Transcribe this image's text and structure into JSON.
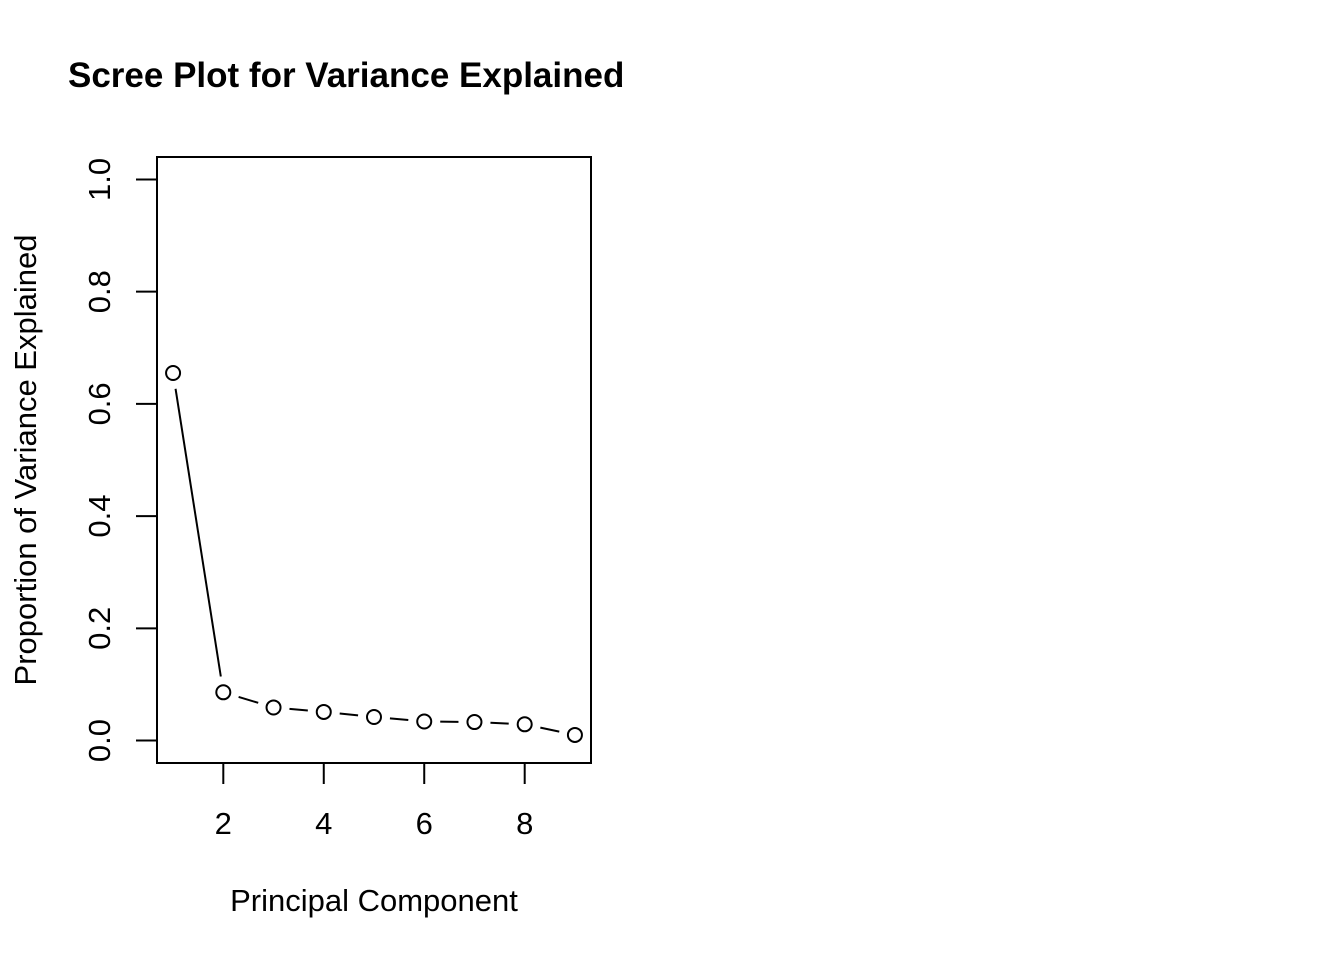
{
  "chart_data": {
    "type": "line",
    "title": "Scree Plot for Variance Explained",
    "xlabel": "Principal Component",
    "ylabel": "Proportion of Variance Explained",
    "xlim": [
      0.68,
      9.32
    ],
    "ylim": [
      -0.04,
      1.04
    ],
    "x_ticks": [
      2,
      4,
      6,
      8
    ],
    "x_tick_labels": [
      "2",
      "4",
      "6",
      "8"
    ],
    "y_ticks": [
      0.0,
      0.2,
      0.4,
      0.6,
      0.8,
      1.0
    ],
    "y_tick_labels": [
      "0.0",
      "0.2",
      "0.4",
      "0.6",
      "0.8",
      "1.0"
    ],
    "grid": false,
    "legend": "none",
    "marker": "open-circle",
    "series": [
      {
        "x": [
          1,
          2,
          3,
          4,
          5,
          6,
          7,
          8,
          9
        ],
        "values": [
          0.655,
          0.086,
          0.059,
          0.051,
          0.042,
          0.034,
          0.033,
          0.029,
          0.01
        ]
      }
    ],
    "colors": {
      "line": "#000000",
      "marker_fill": "#ffffff",
      "axis": "#000000"
    }
  }
}
